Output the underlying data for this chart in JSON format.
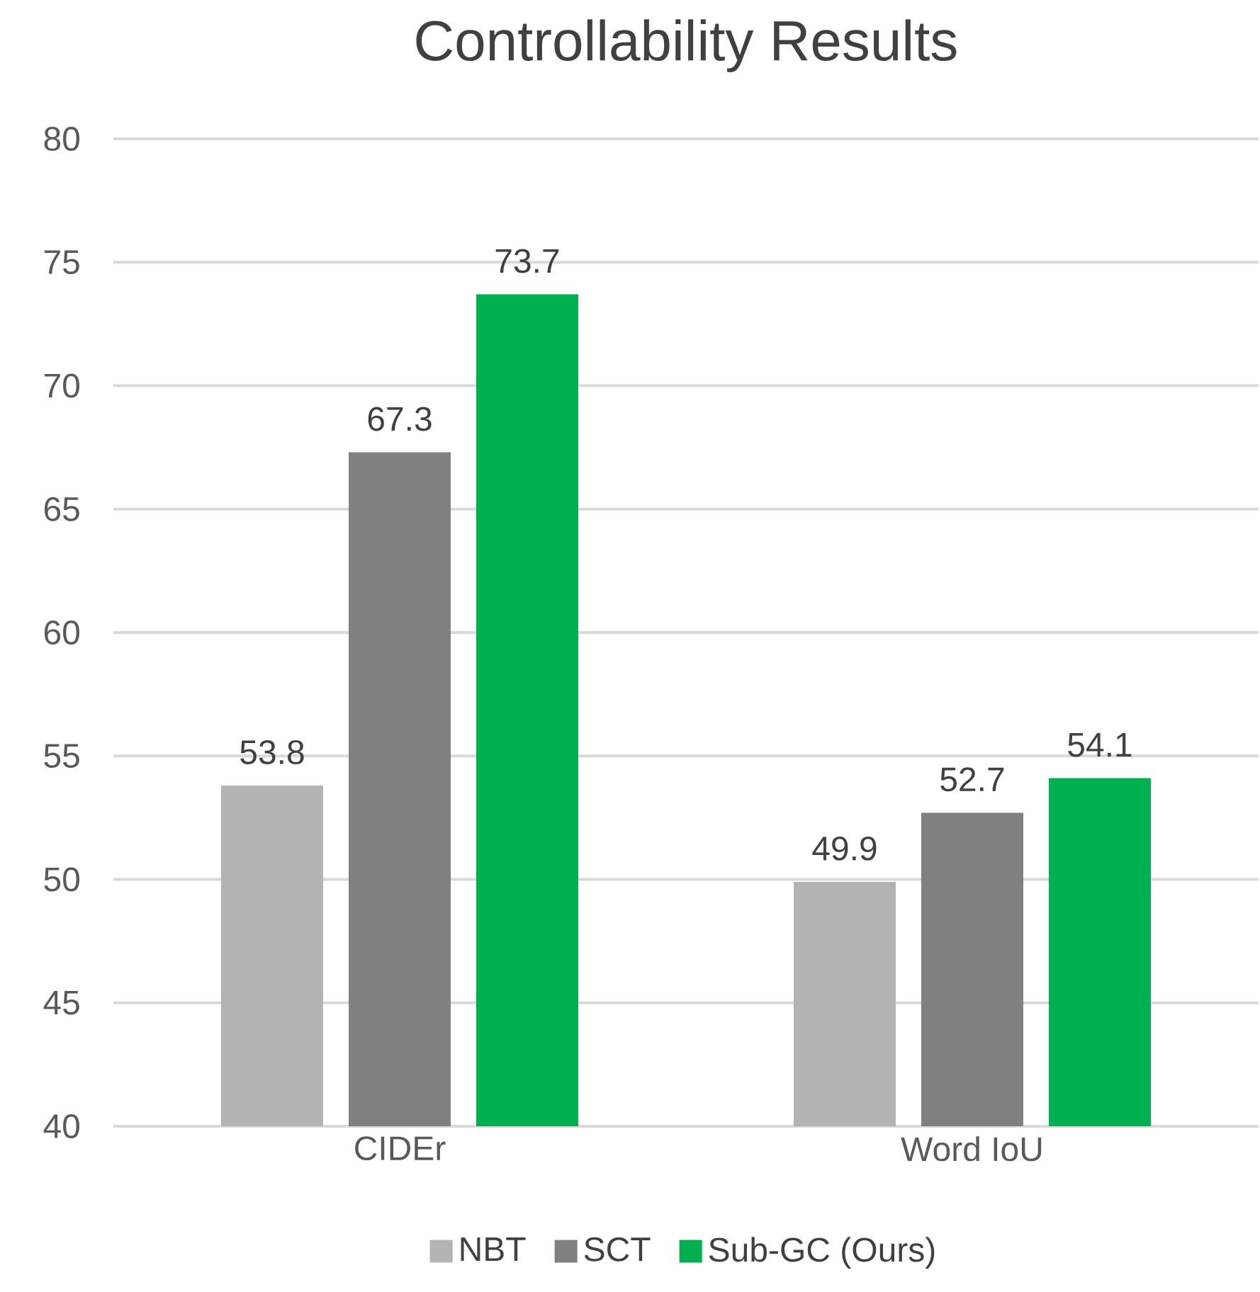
{
  "chart_data": {
    "type": "bar",
    "title": "Controllability Results",
    "categories": [
      "CIDEr",
      "Word IoU"
    ],
    "series": [
      {
        "name": "NBT",
        "color": "#b3b3b3",
        "values": [
          53.8,
          49.9
        ]
      },
      {
        "name": "SCT",
        "color": "#808080",
        "values": [
          67.3,
          52.7
        ]
      },
      {
        "name": "Sub-GC (Ours)",
        "color": "#00b050",
        "values": [
          73.7,
          54.1
        ]
      }
    ],
    "ylim": [
      40,
      80
    ],
    "yticks": [
      40,
      45,
      50,
      55,
      60,
      65,
      70,
      75,
      80
    ],
    "grid": "y",
    "legend": "bottom",
    "data_labels": true
  }
}
